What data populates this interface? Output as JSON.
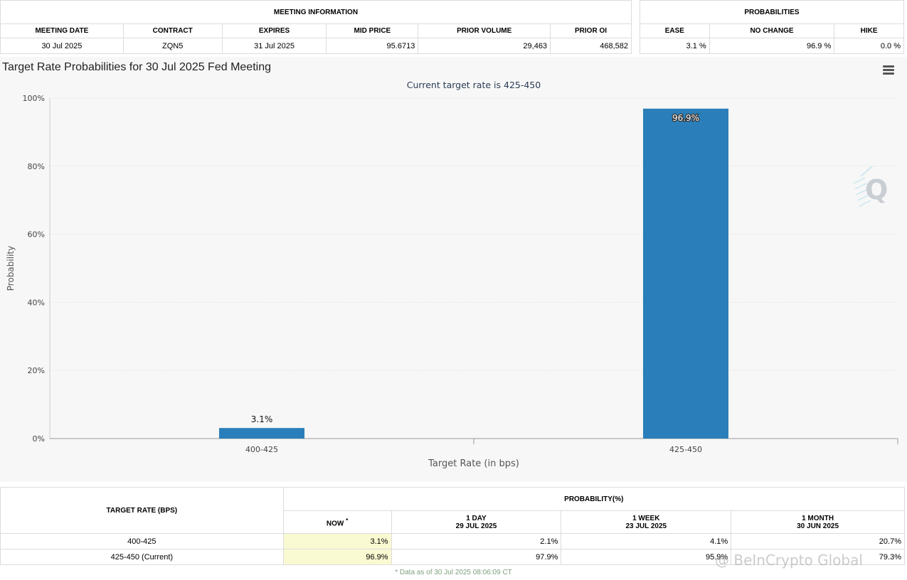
{
  "meeting_info": {
    "title": "MEETING INFORMATION",
    "columns": [
      "MEETING DATE",
      "CONTRACT",
      "EXPIRES",
      "MID PRICE",
      "PRIOR VOLUME",
      "PRIOR OI"
    ],
    "row": [
      "30 Jul 2025",
      "ZQN5",
      "31 Jul 2025",
      "95.6713",
      "29,463",
      "468,582"
    ]
  },
  "probabilities": {
    "title": "PROBABILITIES",
    "columns": [
      "EASE",
      "NO CHANGE",
      "HIKE"
    ],
    "row": [
      "3.1 %",
      "96.9 %",
      "0.0 %"
    ]
  },
  "chart": {
    "title": "Target Rate Probabilities for 30 Jul 2025 Fed Meeting",
    "menu_icon": "hamburger-menu-icon",
    "logo_icon": "q-logo-icon"
  },
  "chart_data": {
    "type": "bar",
    "title": "Target Rate Probabilities for 30 Jul 2025 Fed Meeting",
    "subtitle": "Current target rate is 425-450",
    "xlabel": "Target Rate (in bps)",
    "ylabel": "Probability",
    "categories": [
      "400-425",
      "425-450"
    ],
    "values": [
      3.1,
      96.9
    ],
    "data_labels": [
      "3.1%",
      "96.9%"
    ],
    "ylim": [
      0,
      100
    ],
    "yticks": [
      0,
      20,
      40,
      60,
      80,
      100
    ],
    "ytick_labels": [
      "0%",
      "20%",
      "40%",
      "60%",
      "80%",
      "100%"
    ],
    "bar_color": "#2a7fba",
    "grid": true
  },
  "history": {
    "rate_header": "TARGET RATE (BPS)",
    "prob_header": "PROBABILITY(%)",
    "now_label": "NOW",
    "now_marker": "*",
    "periods": [
      {
        "label": "1 DAY",
        "date": "29 JUL 2025"
      },
      {
        "label": "1 WEEK",
        "date": "23 JUL 2025"
      },
      {
        "label": "1 MONTH",
        "date": "30 JUN 2025"
      }
    ],
    "rows": [
      {
        "rate": "400-425",
        "now": "3.1%",
        "day": "2.1%",
        "week": "4.1%",
        "month": "20.7%"
      },
      {
        "rate": "425-450 (Current)",
        "now": "96.9%",
        "day": "97.9%",
        "week": "95.9%",
        "month": "79.3%"
      }
    ],
    "footnote": "* Data as of 30 Jul 2025 08:06:09 CT"
  },
  "watermark": "@ BeInCrypto Global"
}
